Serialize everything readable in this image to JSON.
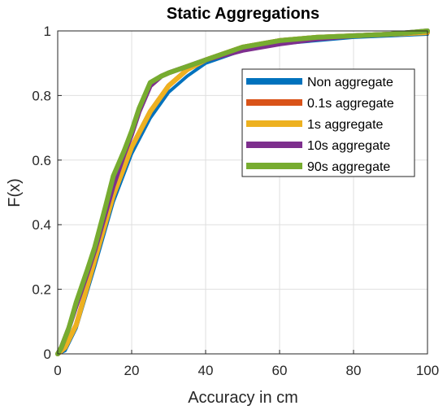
{
  "chart_data": {
    "type": "line",
    "title": "Static Aggregations",
    "xlabel": "Accuracy in cm",
    "ylabel": "F(x)",
    "xlim": [
      0,
      100
    ],
    "ylim": [
      0,
      1
    ],
    "x_ticks": [
      0,
      20,
      40,
      60,
      80,
      100
    ],
    "y_ticks": [
      0,
      0.2,
      0.4,
      0.6,
      0.8,
      1
    ],
    "x_tick_labels": [
      "0",
      "20",
      "40",
      "60",
      "80",
      "100"
    ],
    "y_tick_labels": [
      "0",
      "0.2",
      "0.4",
      "0.6",
      "0.8",
      "1"
    ],
    "grid": true,
    "legend": "upper-right inside",
    "series": [
      {
        "name": "Non aggregate",
        "color": "#0072BD",
        "x": [
          0,
          2,
          5,
          10,
          15,
          20,
          25,
          30,
          35,
          40,
          50,
          60,
          70,
          80,
          90,
          100
        ],
        "y": [
          0,
          0.01,
          0.08,
          0.27,
          0.47,
          0.62,
          0.73,
          0.81,
          0.86,
          0.9,
          0.94,
          0.96,
          0.97,
          0.98,
          0.985,
          0.99
        ]
      },
      {
        "name": "0.1s aggregate",
        "color": "#D95319",
        "x": [
          0,
          2,
          5,
          10,
          15,
          20,
          25,
          30,
          35,
          40,
          50,
          60,
          70,
          80,
          90,
          100
        ],
        "y": [
          0,
          0.02,
          0.09,
          0.29,
          0.49,
          0.64,
          0.75,
          0.83,
          0.88,
          0.91,
          0.95,
          0.97,
          0.98,
          0.985,
          0.99,
          0.995
        ]
      },
      {
        "name": "1s aggregate",
        "color": "#EDB120",
        "x": [
          0,
          2,
          5,
          10,
          15,
          20,
          25,
          30,
          35,
          40,
          50,
          60,
          70,
          80,
          90,
          100
        ],
        "y": [
          0,
          0.02,
          0.09,
          0.29,
          0.49,
          0.64,
          0.75,
          0.83,
          0.88,
          0.91,
          0.95,
          0.97,
          0.98,
          0.985,
          0.99,
          0.995
        ]
      },
      {
        "name": "10s aggregate",
        "color": "#7E2F8E",
        "x": [
          0,
          1,
          3,
          5,
          8,
          10,
          13,
          15,
          18,
          20,
          22,
          25,
          28,
          30,
          35,
          40,
          50,
          60,
          70,
          80,
          90,
          100
        ],
        "y": [
          0,
          0.02,
          0.08,
          0.15,
          0.25,
          0.32,
          0.44,
          0.52,
          0.62,
          0.68,
          0.75,
          0.83,
          0.86,
          0.87,
          0.89,
          0.91,
          0.94,
          0.96,
          0.975,
          0.985,
          0.99,
          1.0
        ]
      },
      {
        "name": "90s aggregate",
        "color": "#77AC30",
        "x": [
          0,
          1,
          3,
          5,
          8,
          10,
          13,
          15,
          18,
          20,
          22,
          25,
          28,
          30,
          35,
          40,
          50,
          60,
          70,
          80,
          90,
          100
        ],
        "y": [
          0,
          0.02,
          0.08,
          0.16,
          0.26,
          0.33,
          0.46,
          0.55,
          0.63,
          0.69,
          0.76,
          0.84,
          0.86,
          0.87,
          0.89,
          0.91,
          0.95,
          0.97,
          0.98,
          0.985,
          0.99,
          1.0
        ]
      }
    ]
  }
}
